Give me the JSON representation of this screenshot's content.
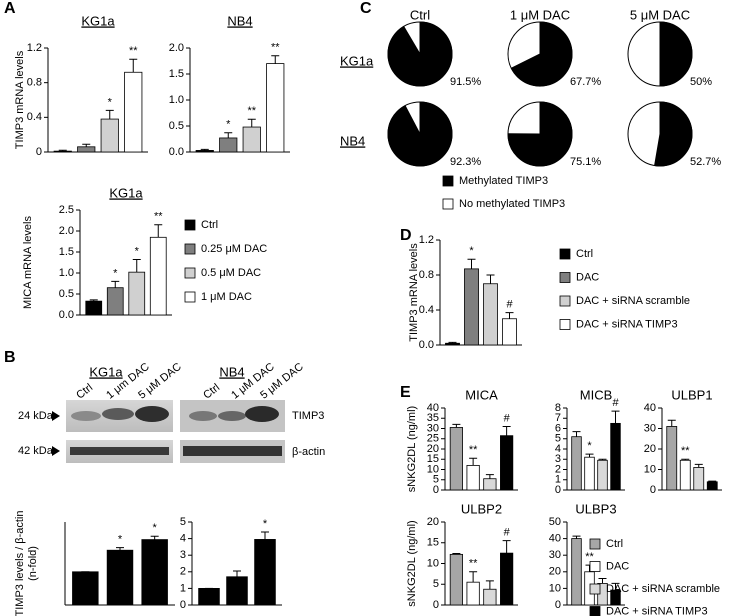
{
  "panels": [
    "A",
    "B",
    "C",
    "D",
    "E"
  ],
  "western_blot": {
    "gels": [
      {
        "title": "KG1a",
        "lanes": [
          "Ctrl",
          "1 μm DAC",
          "5 μM DAC"
        ]
      },
      {
        "title": "NB4",
        "lanes": [
          "Ctrl",
          "1 μM DAC",
          "5 μM DAC"
        ]
      }
    ],
    "markers": [
      "24 kDa",
      "42 kDa"
    ],
    "proteins": [
      "TIMP3",
      "β-actin"
    ]
  },
  "chart_data": [
    {
      "type": "bar",
      "title": "KG1a",
      "title_underline": true,
      "ylabel": "TIMP3 mRNA levels",
      "ylim": [
        0,
        1.2
      ],
      "yticks": [
        0,
        0.4,
        0.8,
        1.2
      ],
      "values": [
        0.01,
        0.06,
        0.38,
        0.92
      ],
      "errors": [
        0.01,
        0.03,
        0.1,
        0.15
      ],
      "annotations": [
        null,
        null,
        "*",
        "**"
      ],
      "colors": [
        "#000000",
        "#7f7f7f",
        "#d0d0d0",
        "#ffffff"
      ]
    },
    {
      "type": "bar",
      "title": "NB4",
      "title_underline": true,
      "ylim": [
        0,
        2
      ],
      "yticks": [
        {
          "value": 0,
          "label": "0.0"
        },
        {
          "value": 0.5,
          "label": "0.5"
        },
        {
          "value": 1,
          "label": "1.0"
        },
        {
          "value": 1.5,
          "label": "1.5"
        },
        {
          "value": 2,
          "label": "2.0"
        }
      ],
      "values": [
        0.03,
        0.27,
        0.48,
        1.7
      ],
      "errors": [
        0.02,
        0.1,
        0.15,
        0.15
      ],
      "annotations": [
        null,
        "*",
        "**",
        "**"
      ],
      "colors": [
        "#000000",
        "#7f7f7f",
        "#d0d0d0",
        "#ffffff"
      ]
    },
    {
      "type": "bar",
      "title": "KG1a",
      "title_underline": true,
      "ylabel": "MICA  mRNA levels",
      "ylim": [
        0,
        2.5
      ],
      "yticks": [
        {
          "value": 0,
          "label": "0.0"
        },
        {
          "value": 0.5,
          "label": "0.5"
        },
        {
          "value": 1,
          "label": "1.0"
        },
        {
          "value": 1.5,
          "label": "1.5"
        },
        {
          "value": 2,
          "label": "2.0"
        },
        {
          "value": 2.5,
          "label": "2.5"
        }
      ],
      "values": [
        0.33,
        0.65,
        1.02,
        1.85
      ],
      "errors": [
        0.03,
        0.15,
        0.3,
        0.3
      ],
      "annotations": [
        null,
        "*",
        "*",
        "**"
      ],
      "colors": [
        "#000000",
        "#7f7f7f",
        "#d0d0d0",
        "#ffffff"
      ],
      "legend": {
        "names": [
          "Ctrl",
          "0.25 μM DAC",
          "0.5 μM DAC",
          "1 μM DAC"
        ],
        "colors": [
          "#000000",
          "#7f7f7f",
          "#d0d0d0",
          "#ffffff"
        ]
      }
    },
    {
      "type": "bar",
      "ylabel": [
        "TIMP3 levels / β-actin",
        "(n-fold)"
      ],
      "ylim": [
        0,
        2.5
      ],
      "values": [
        1,
        1.65,
        1.97
      ],
      "errors": [
        0,
        0.08,
        0.1
      ],
      "annotations": [
        null,
        "*",
        "*"
      ],
      "colors": [
        "#000000",
        "#000000",
        "#000000"
      ]
    },
    {
      "type": "bar",
      "ylim": [
        0,
        5
      ],
      "yticks": [
        0,
        1,
        2,
        3,
        4,
        5
      ],
      "values": [
        1,
        1.7,
        3.95
      ],
      "errors": [
        0,
        0.35,
        0.45
      ],
      "annotations": [
        null,
        null,
        "*"
      ],
      "colors": [
        "#000000",
        "#000000",
        "#000000"
      ]
    },
    {
      "type": "pie",
      "columns": [
        "Ctrl",
        "1 μM DAC",
        "5 μM DAC"
      ],
      "rows": [
        "KG1a",
        "NB4"
      ],
      "values": [
        [
          91.5,
          67.7,
          50
        ],
        [
          92.3,
          75.1,
          52.7
        ]
      ],
      "value_labels": [
        [
          "91.5%",
          "67.7%",
          "50%"
        ],
        [
          "92.3%",
          "75.1%",
          "52.7%"
        ]
      ],
      "color": "#000000",
      "legend": {
        "names": [
          "Methylated TIMP3",
          "No methylated TIMP3"
        ],
        "colors": [
          "#000000",
          "#ffffff"
        ]
      }
    },
    {
      "type": "bar",
      "ylabel": "TIMP3 mRNA levels",
      "ylim": [
        0,
        1.2
      ],
      "yticks": [
        {
          "value": 0,
          "label": "0.0"
        },
        0.4,
        0.8,
        1.2
      ],
      "values": [
        0.02,
        0.87,
        0.7,
        0.3
      ],
      "errors": [
        0.01,
        0.11,
        0.1,
        0.07
      ],
      "annotations": [
        null,
        "*",
        null,
        "#"
      ],
      "colors": [
        "#000000",
        "#7f7f7f",
        "#d0d0d0",
        "#ffffff"
      ],
      "legend": {
        "names": [
          "Ctrl",
          "DAC",
          "DAC + siRNA scramble",
          "DAC + siRNA TIMP3"
        ],
        "colors": [
          "#000000",
          "#7f7f7f",
          "#d0d0d0",
          "#ffffff"
        ]
      }
    },
    {
      "type": "bar",
      "title": "MICA",
      "ylabel": "sNKG2DL (ng/ml)",
      "ylim": [
        0,
        40
      ],
      "yticks": [
        0,
        5,
        10,
        15,
        20,
        25,
        30,
        35,
        40
      ],
      "values": [
        30.5,
        12,
        5.5,
        26.5
      ],
      "errors": [
        1.5,
        3.5,
        2,
        4.5
      ],
      "annotations": [
        null,
        "**",
        null,
        "#"
      ],
      "colors": [
        "#a6a6a6",
        "#ffffff",
        "#d9d9d9",
        "#000000"
      ]
    },
    {
      "type": "bar",
      "title": "MICB",
      "ylim": [
        0,
        8
      ],
      "yticks": [
        0,
        1,
        2,
        3,
        4,
        5,
        6,
        7,
        8
      ],
      "values": [
        5.2,
        3.2,
        2.9,
        6.5
      ],
      "errors": [
        0.5,
        0.3,
        0.1,
        1.2
      ],
      "annotations": [
        null,
        "*",
        null,
        "#"
      ],
      "colors": [
        "#a6a6a6",
        "#ffffff",
        "#d9d9d9",
        "#000000"
      ]
    },
    {
      "type": "bar",
      "title": "ULBP1",
      "ylim": [
        0,
        40
      ],
      "yticks": [
        0,
        10,
        20,
        30,
        40
      ],
      "values": [
        31,
        14.5,
        11,
        4
      ],
      "errors": [
        3,
        0.5,
        1.5,
        0.3
      ],
      "annotations": [
        null,
        "**",
        null,
        null
      ],
      "colors": [
        "#a6a6a6",
        "#ffffff",
        "#d9d9d9",
        "#000000"
      ]
    },
    {
      "type": "bar",
      "title": "ULBP2",
      "ylabel": "sNKG2DL (ng/ml)",
      "ylim": [
        0,
        20
      ],
      "yticks": [
        0,
        5,
        10,
        15,
        20
      ],
      "values": [
        12.2,
        5.5,
        3.8,
        12.5
      ],
      "errors": [
        0.2,
        2.5,
        2,
        3
      ],
      "annotations": [
        null,
        "**",
        null,
        "#"
      ],
      "colors": [
        "#a6a6a6",
        "#ffffff",
        "#d9d9d9",
        "#000000"
      ]
    },
    {
      "type": "bar",
      "title": "ULBP3",
      "ylim": [
        0,
        50
      ],
      "yticks": [
        0,
        10,
        20,
        30,
        40,
        50
      ],
      "values": [
        40,
        20,
        13,
        9
      ],
      "errors": [
        1.5,
        4,
        3,
        4
      ],
      "annotations": [
        null,
        "**",
        null,
        null
      ],
      "colors": [
        "#a6a6a6",
        "#ffffff",
        "#d9d9d9",
        "#000000"
      ],
      "legend": {
        "names": [
          "Ctrl",
          "DAC",
          "DAC + siRNA scramble",
          "DAC + siRNA TIMP3"
        ],
        "colors": [
          "#a6a6a6",
          "#ffffff",
          "#d9d9d9",
          "#000000"
        ]
      }
    }
  ]
}
